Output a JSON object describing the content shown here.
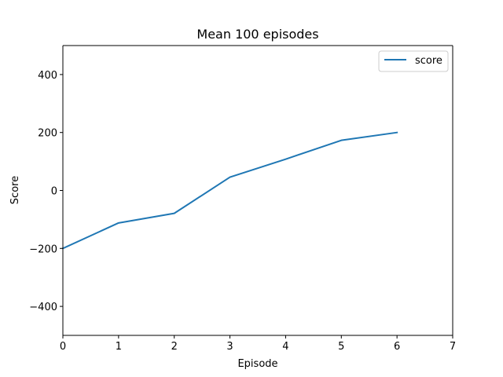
{
  "chart_data": {
    "type": "line",
    "title": "Mean 100 episodes",
    "xlabel": "Episode",
    "ylabel": "Score",
    "xlim": [
      0,
      7
    ],
    "ylim": [
      -500,
      500
    ],
    "xticks": [
      0,
      1,
      2,
      3,
      4,
      5,
      6,
      7
    ],
    "yticks": [
      -400,
      -200,
      0,
      200,
      400
    ],
    "ytick_labels": [
      "−400",
      "−200",
      "0",
      "200",
      "400"
    ],
    "grid": false,
    "legend": {
      "position": "top-right",
      "entries": [
        "score"
      ]
    },
    "series": [
      {
        "name": "score",
        "color": "#1f77b4",
        "x": [
          0,
          1,
          2,
          3,
          4,
          5,
          6
        ],
        "y": [
          -200,
          -112,
          -79,
          46,
          108,
          173,
          200
        ]
      }
    ]
  }
}
